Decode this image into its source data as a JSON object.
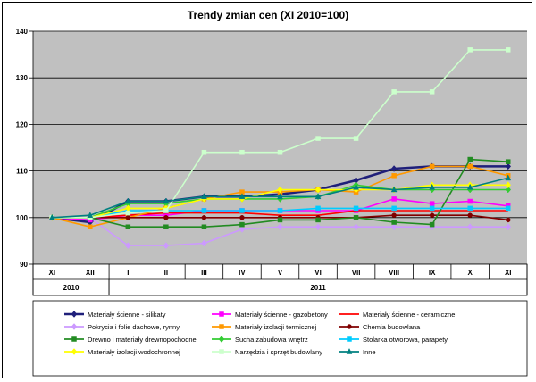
{
  "chart_data": {
    "type": "line",
    "title": "Trendy zmian cen (XI 2010=100)",
    "categories": [
      "XI",
      "XII",
      "I",
      "II",
      "III",
      "IV",
      "V",
      "VI",
      "VII",
      "VIII",
      "IX",
      "X",
      "XI"
    ],
    "year_groups": [
      {
        "label": "2010",
        "start": 0,
        "end": 1
      },
      {
        "label": "2011",
        "start": 2,
        "end": 12
      }
    ],
    "ylim": [
      90,
      140
    ],
    "yticks": [
      "90",
      "100",
      "110",
      "120",
      "130",
      "140"
    ],
    "grid": true,
    "legend_placement": "bottom",
    "series": [
      {
        "name": "Materiały ścienne - silikaty",
        "color": "#1f1f7a",
        "marker": "diamond",
        "values": [
          100,
          99,
          103.5,
          103.5,
          104.5,
          104.5,
          105,
          106,
          108,
          110.5,
          111,
          111,
          111
        ]
      },
      {
        "name": "Materiały ścienne - gazobetony",
        "color": "#ff00ff",
        "marker": "square",
        "values": [
          100,
          99.5,
          100.5,
          100.5,
          101.5,
          101.5,
          101.5,
          101.5,
          101.5,
          104,
          103,
          103.5,
          102.5
        ]
      },
      {
        "name": "Materiały ścienne - ceramiczne",
        "color": "#ff0000",
        "marker": "none",
        "values": [
          100,
          100,
          100.5,
          101,
          101,
          101,
          100.5,
          100.5,
          101.5,
          101.5,
          101.5,
          101.5,
          101.5
        ]
      },
      {
        "name": "Pokrycia i folie dachowe, rynny",
        "color": "#cc99ff",
        "marker": "diamond",
        "values": [
          100,
          100,
          94,
          94,
          94.5,
          97.5,
          98,
          98,
          98,
          98,
          98,
          98,
          98
        ]
      },
      {
        "name": "Materiały izolacji termicznej",
        "color": "#ff9900",
        "marker": "square",
        "values": [
          100,
          98,
          100,
          102,
          104,
          105.5,
          105.5,
          106,
          105.5,
          109,
          111,
          111,
          109
        ]
      },
      {
        "name": "Chemia budowlana",
        "color": "#800000",
        "marker": "circle",
        "values": [
          100,
          100,
          100,
          100,
          100,
          100,
          100,
          100,
          100,
          100.5,
          100.5,
          100.5,
          99.5
        ]
      },
      {
        "name": "Drewno i materiały drewnopochodne",
        "color": "#228b22",
        "marker": "square",
        "values": [
          100,
          100,
          98,
          98,
          98,
          98.5,
          99.5,
          99.5,
          100,
          99,
          98.5,
          112.5,
          112
        ]
      },
      {
        "name": "Sucha zabudowa wnętrz",
        "color": "#33cc33",
        "marker": "diamond",
        "values": [
          100,
          100,
          103,
          103,
          104,
          104,
          104,
          104.5,
          107,
          106,
          106,
          106,
          106
        ]
      },
      {
        "name": "Stolarka otworowa, parapety",
        "color": "#00ccff",
        "marker": "square",
        "values": [
          100,
          100,
          101.5,
          101.5,
          101.5,
          101.5,
          101.5,
          102,
          102,
          102,
          102,
          102,
          102
        ]
      },
      {
        "name": "Materiały izolacji wodochronnej",
        "color": "#ffff00",
        "marker": "diamond",
        "values": [
          100,
          100,
          102,
          102,
          104,
          104,
          106,
          106,
          106,
          106,
          107,
          107,
          107
        ]
      },
      {
        "name": "Narzędzia i sprzęt budowlany",
        "color": "#ccffcc",
        "marker": "square",
        "values": [
          100,
          100,
          101,
          101.5,
          114,
          114,
          114,
          117,
          117,
          127,
          127,
          136,
          136
        ]
      },
      {
        "name": "Inne",
        "color": "#008080",
        "marker": "triangle",
        "values": [
          100,
          100.5,
          103.5,
          103.5,
          104.5,
          104.5,
          104.5,
          104.5,
          106.5,
          106,
          106.5,
          106.5,
          108.5
        ]
      }
    ]
  }
}
